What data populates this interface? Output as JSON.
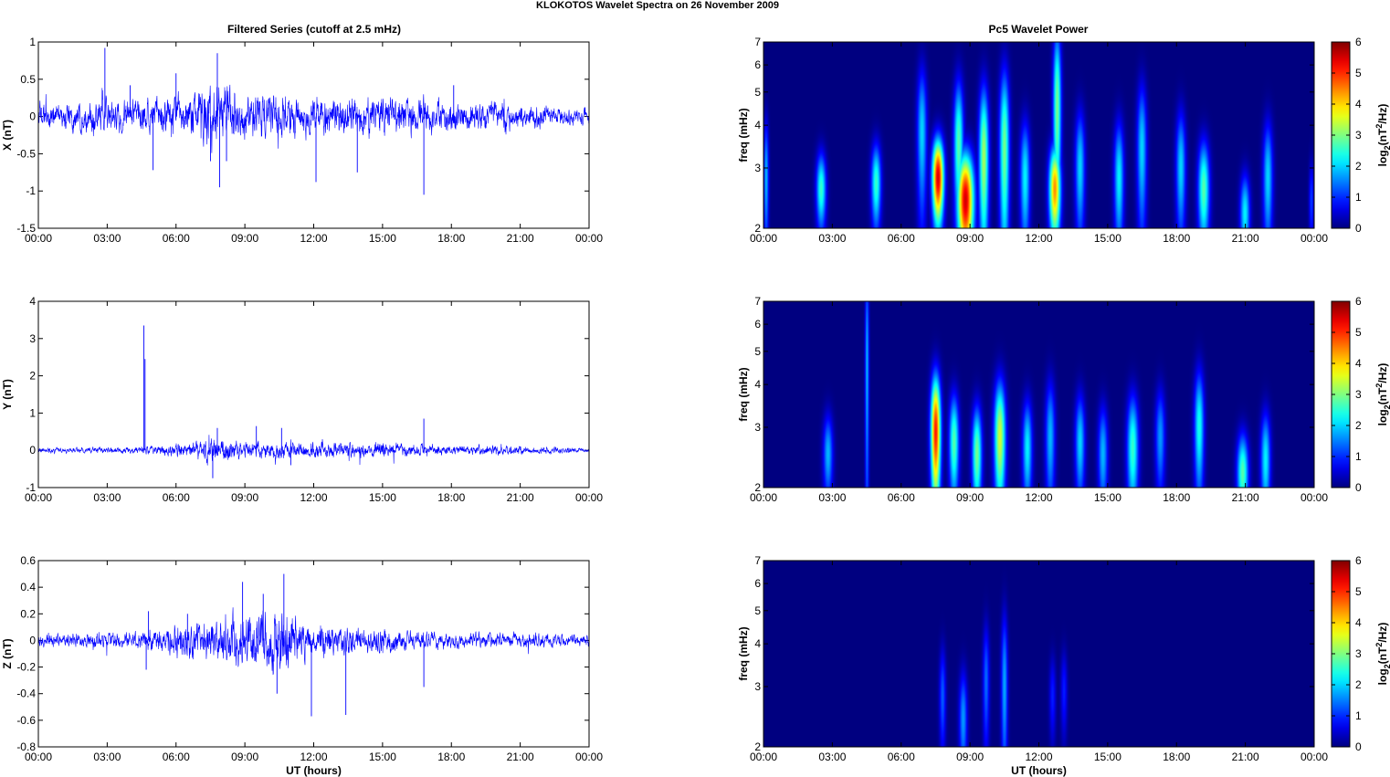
{
  "figure": {
    "suptitle": "KLOKOTOS Wavelet Spectra on 26 November  2009",
    "left_title": "Filtered Series (cutoff at 2.5 mHz)",
    "right_title": "Pc5 Wavelet Power",
    "xlabel": "UT (hours)",
    "series_color": "#0000ff"
  },
  "chart_data": [
    {
      "type": "line",
      "component": "X",
      "ylabel": "X (nT)",
      "ylim": [
        -1.5,
        1
      ],
      "yticks": [
        -1.5,
        -1,
        -0.5,
        0,
        0.5,
        1
      ],
      "ytick_labels": [
        "-1.5",
        "-1",
        "-0.5",
        "0",
        "0.5",
        "1"
      ],
      "xlim": [
        0,
        24
      ],
      "xticks": [
        0,
        3,
        6,
        9,
        12,
        15,
        18,
        21,
        24
      ],
      "xtick_labels": [
        "00:00",
        "03:00",
        "06:00",
        "09:00",
        "12:00",
        "15:00",
        "18:00",
        "21:00",
        "00:00"
      ],
      "envelope": [
        [
          0,
          0.2
        ],
        [
          3,
          0.25
        ],
        [
          4.5,
          0.25
        ],
        [
          6,
          0.3
        ],
        [
          7.5,
          0.55
        ],
        [
          8.5,
          0.45
        ],
        [
          10,
          0.35
        ],
        [
          12,
          0.3
        ],
        [
          15,
          0.3
        ],
        [
          18,
          0.25
        ],
        [
          21,
          0.2
        ],
        [
          24,
          0.12
        ]
      ],
      "spikes": [
        [
          2.9,
          0.92
        ],
        [
          4,
          0.42
        ],
        [
          5,
          -0.72
        ],
        [
          6,
          0.58
        ],
        [
          7.5,
          -0.6
        ],
        [
          7.8,
          0.85
        ],
        [
          7.9,
          -0.95
        ],
        [
          8.2,
          -0.6
        ],
        [
          12.1,
          -0.88
        ],
        [
          13.9,
          -0.75
        ],
        [
          16.8,
          -1.05
        ],
        [
          18.1,
          0.42
        ]
      ]
    },
    {
      "type": "heatmap",
      "component": "X",
      "ylabel": "freq (mHz)",
      "yscale": "log",
      "ylim": [
        2,
        7
      ],
      "yticks": [
        2,
        3,
        4,
        5,
        6,
        7
      ],
      "ytick_labels": [
        "2",
        "3",
        "4",
        "5",
        "6",
        "7"
      ],
      "xlim": [
        0,
        24
      ],
      "xticks": [
        0,
        3,
        6,
        9,
        12,
        15,
        18,
        21,
        24
      ],
      "xtick_labels": [
        "00:00",
        "03:00",
        "06:00",
        "09:00",
        "12:00",
        "15:00",
        "18:00",
        "21:00",
        "00:00"
      ],
      "colorbar_label": "log2(nT2/Hz)",
      "colorbar_ticks": [
        "0",
        "1",
        "2",
        "3",
        "4",
        "5",
        "6"
      ],
      "clim": [
        0,
        6
      ],
      "bursts": [
        [
          2.5,
          2.6,
          0.3,
          0.18,
          2.8
        ],
        [
          4.9,
          2.7,
          0.3,
          0.2,
          2.8
        ],
        [
          6.9,
          3.8,
          0.3,
          0.35,
          2.2
        ],
        [
          7.6,
          2.8,
          0.35,
          0.2,
          6.0
        ],
        [
          8.8,
          2.4,
          0.5,
          0.25,
          6.0
        ],
        [
          8.5,
          3.5,
          0.3,
          0.35,
          3.0
        ],
        [
          9.6,
          3.2,
          0.3,
          0.4,
          3.5
        ],
        [
          10.5,
          3.4,
          0.3,
          0.45,
          3.2
        ],
        [
          11.4,
          2.8,
          0.3,
          0.3,
          2.4
        ],
        [
          12.7,
          2.6,
          0.35,
          0.22,
          4.8
        ],
        [
          12.8,
          4.5,
          0.25,
          0.45,
          3.2
        ],
        [
          13.8,
          3.0,
          0.3,
          0.3,
          2.2
        ],
        [
          15.5,
          2.8,
          0.3,
          0.3,
          2.4
        ],
        [
          16.5,
          3.4,
          0.3,
          0.35,
          2.2
        ],
        [
          18.2,
          3.0,
          0.3,
          0.3,
          2.2
        ],
        [
          19.2,
          2.6,
          0.35,
          0.25,
          3.0
        ],
        [
          21.0,
          2.2,
          0.3,
          0.2,
          2.4
        ],
        [
          22.0,
          2.8,
          0.3,
          0.3,
          2.2
        ],
        [
          0.1,
          2.8,
          0.15,
          0.3,
          2.0
        ],
        [
          23.9,
          2.4,
          0.15,
          0.2,
          1.2
        ]
      ]
    },
    {
      "type": "line",
      "component": "Y",
      "ylabel": "Y (nT)",
      "ylim": [
        -1,
        4
      ],
      "yticks": [
        -1,
        0,
        1,
        2,
        3,
        4
      ],
      "ytick_labels": [
        "-1",
        "0",
        "1",
        "2",
        "3",
        "4"
      ],
      "xlim": [
        0,
        24
      ],
      "xticks": [
        0,
        3,
        6,
        9,
        12,
        15,
        18,
        21,
        24
      ],
      "xtick_labels": [
        "00:00",
        "03:00",
        "06:00",
        "09:00",
        "12:00",
        "15:00",
        "18:00",
        "21:00",
        "00:00"
      ],
      "envelope": [
        [
          0,
          0.08
        ],
        [
          4,
          0.1
        ],
        [
          6,
          0.2
        ],
        [
          7.5,
          0.4
        ],
        [
          9,
          0.3
        ],
        [
          12,
          0.25
        ],
        [
          15,
          0.25
        ],
        [
          18,
          0.15
        ],
        [
          21,
          0.15
        ],
        [
          24,
          0.06
        ]
      ],
      "spikes": [
        [
          4.6,
          3.35
        ],
        [
          4.65,
          2.45
        ],
        [
          7.6,
          -0.75
        ],
        [
          7.8,
          0.6
        ],
        [
          9.5,
          0.65
        ],
        [
          10.6,
          0.6
        ],
        [
          16.8,
          0.85
        ],
        [
          11,
          -0.4
        ]
      ]
    },
    {
      "type": "heatmap",
      "component": "Y",
      "ylabel": "freq (mHz)",
      "yscale": "log",
      "ylim": [
        2,
        7
      ],
      "yticks": [
        2,
        3,
        4,
        5,
        6,
        7
      ],
      "ytick_labels": [
        "2",
        "3",
        "4",
        "5",
        "6",
        "7"
      ],
      "xlim": [
        0,
        24
      ],
      "xticks": [
        0,
        3,
        6,
        9,
        12,
        15,
        18,
        21,
        24
      ],
      "xtick_labels": [
        "00:00",
        "03:00",
        "06:00",
        "09:00",
        "12:00",
        "15:00",
        "18:00",
        "21:00",
        "00:00"
      ],
      "colorbar_label": "log2(nT2/Hz)",
      "colorbar_ticks": [
        "0",
        "1",
        "2",
        "3",
        "4",
        "5",
        "6"
      ],
      "clim": [
        0,
        6
      ],
      "bursts": [
        [
          2.8,
          2.5,
          0.3,
          0.2,
          2.0
        ],
        [
          4.5,
          4.5,
          0.12,
          0.6,
          2.0
        ],
        [
          7.5,
          2.9,
          0.3,
          0.3,
          5.6
        ],
        [
          8.3,
          2.7,
          0.3,
          0.25,
          3.0
        ],
        [
          9.3,
          2.5,
          0.3,
          0.25,
          3.2
        ],
        [
          10.3,
          2.8,
          0.35,
          0.3,
          3.8
        ],
        [
          11.5,
          2.6,
          0.3,
          0.25,
          2.4
        ],
        [
          12.5,
          2.8,
          0.3,
          0.3,
          2.0
        ],
        [
          13.8,
          2.7,
          0.3,
          0.25,
          2.2
        ],
        [
          14.8,
          2.5,
          0.3,
          0.25,
          2.0
        ],
        [
          16.1,
          2.6,
          0.35,
          0.28,
          2.8
        ],
        [
          17.3,
          2.8,
          0.3,
          0.25,
          1.8
        ],
        [
          19.0,
          3.0,
          0.3,
          0.3,
          2.6
        ],
        [
          20.9,
          2.2,
          0.35,
          0.2,
          3.0
        ],
        [
          21.9,
          2.4,
          0.3,
          0.25,
          2.4
        ]
      ]
    },
    {
      "type": "line",
      "component": "Z",
      "ylabel": "Z (nT)",
      "ylim": [
        -0.8,
        0.6
      ],
      "yticks": [
        -0.8,
        -0.6,
        -0.4,
        -0.2,
        0,
        0.2,
        0.4,
        0.6
      ],
      "ytick_labels": [
        "-0.8",
        "-0.6",
        "-0.4",
        "-0.2",
        "0",
        "0.2",
        "0.4",
        "0.6"
      ],
      "xlim": [
        0,
        24
      ],
      "xticks": [
        0,
        3,
        6,
        9,
        12,
        15,
        18,
        21,
        24
      ],
      "xtick_labels": [
        "00:00",
        "03:00",
        "06:00",
        "09:00",
        "12:00",
        "15:00",
        "18:00",
        "21:00",
        "00:00"
      ],
      "xlabel": "UT (hours)",
      "envelope": [
        [
          0,
          0.06
        ],
        [
          4,
          0.07
        ],
        [
          5,
          0.1
        ],
        [
          7,
          0.18
        ],
        [
          9,
          0.25
        ],
        [
          10.5,
          0.3
        ],
        [
          12,
          0.15
        ],
        [
          15,
          0.1
        ],
        [
          18,
          0.07
        ],
        [
          21,
          0.07
        ],
        [
          24,
          0.05
        ]
      ],
      "spikes": [
        [
          4.7,
          -0.22
        ],
        [
          4.8,
          0.22
        ],
        [
          6.5,
          0.2
        ],
        [
          8.9,
          0.44
        ],
        [
          9.8,
          0.35
        ],
        [
          10.7,
          0.5
        ],
        [
          11.9,
          -0.57
        ],
        [
          13.4,
          -0.56
        ],
        [
          16.8,
          -0.35
        ],
        [
          10.4,
          -0.4
        ]
      ]
    },
    {
      "type": "heatmap",
      "component": "Z",
      "ylabel": "freq (mHz)",
      "yscale": "log",
      "ylim": [
        2,
        7
      ],
      "yticks": [
        2,
        3,
        4,
        5,
        6,
        7
      ],
      "ytick_labels": [
        "2",
        "3",
        "4",
        "5",
        "6",
        "7"
      ],
      "xlim": [
        0,
        24
      ],
      "xticks": [
        0,
        3,
        6,
        9,
        12,
        15,
        18,
        21,
        24
      ],
      "xtick_labels": [
        "00:00",
        "03:00",
        "06:00",
        "09:00",
        "12:00",
        "15:00",
        "18:00",
        "21:00",
        "00:00"
      ],
      "xlabel": "UT (hours)",
      "colorbar_label": "log2(nT2/Hz)",
      "colorbar_ticks": [
        "0",
        "1",
        "2",
        "3",
        "4",
        "5",
        "6"
      ],
      "clim": [
        0,
        6
      ],
      "bursts": [
        [
          7.8,
          2.8,
          0.2,
          0.25,
          1.4
        ],
        [
          8.7,
          2.4,
          0.25,
          0.25,
          1.8
        ],
        [
          9.7,
          3.1,
          0.2,
          0.3,
          1.5
        ],
        [
          10.5,
          3.0,
          0.2,
          0.4,
          1.9
        ],
        [
          12.6,
          2.8,
          0.2,
          0.2,
          1.0
        ],
        [
          13.1,
          2.9,
          0.2,
          0.2,
          1.0
        ]
      ]
    }
  ]
}
